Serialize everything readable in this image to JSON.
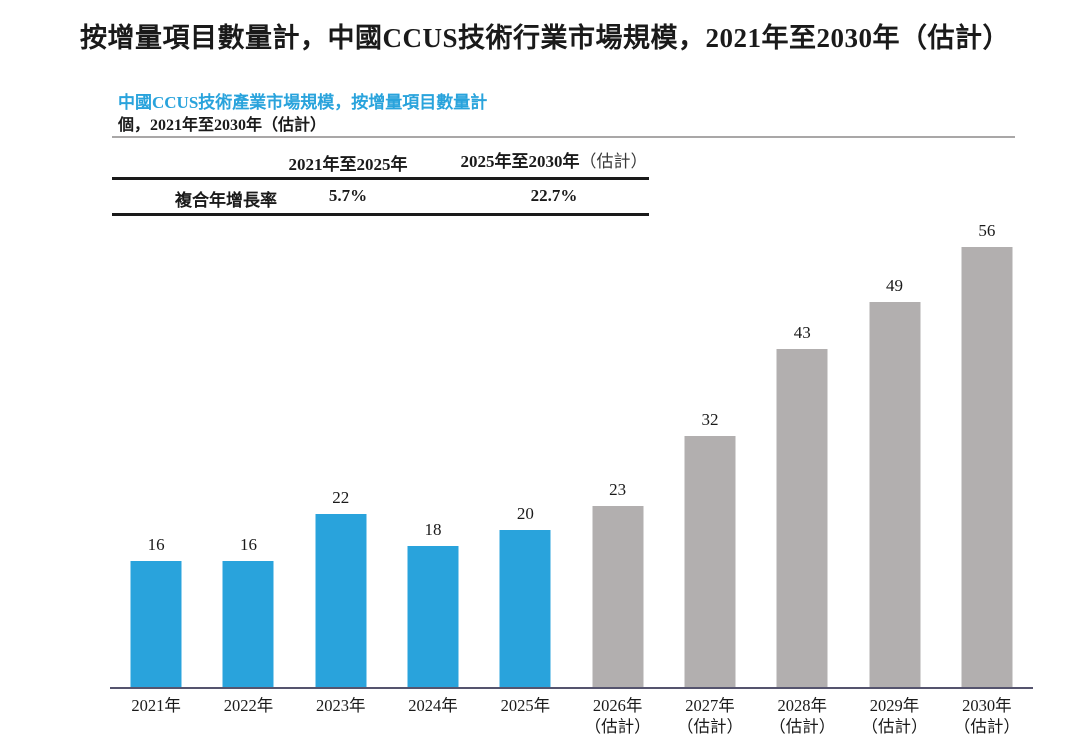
{
  "page": {
    "title": "按增量項目數量計，中國CCUS技術行業市場規模，2021年至2030年（估計）"
  },
  "chart_header": {
    "subtitle": "中國CCUS技術產業市場規模，按增量項目數量計",
    "unit_line": "個，2021年至2030年（估計）"
  },
  "cagr_table": {
    "columns": [
      {
        "label": "2021年至2025年",
        "note": ""
      },
      {
        "label": "2025年至2030年",
        "note": "（估計）"
      }
    ],
    "row_label": "複合年增長率",
    "values": [
      "5.7%",
      "22.7%"
    ]
  },
  "chart_data": {
    "type": "bar",
    "title": "中國CCUS技術產業市場規模，按增量項目數量計",
    "unit": "個",
    "categories": [
      {
        "year": "2021年",
        "note": ""
      },
      {
        "year": "2022年",
        "note": ""
      },
      {
        "year": "2023年",
        "note": ""
      },
      {
        "year": "2024年",
        "note": ""
      },
      {
        "year": "2025年",
        "note": ""
      },
      {
        "year": "2026年",
        "note": "（估計）"
      },
      {
        "year": "2027年",
        "note": "（估計）"
      },
      {
        "year": "2028年",
        "note": "（估計）"
      },
      {
        "year": "2029年",
        "note": "（估計）"
      },
      {
        "year": "2030年",
        "note": "（估計）"
      }
    ],
    "values": [
      16,
      16,
      22,
      18,
      20,
      23,
      32,
      43,
      49,
      56
    ],
    "estimated": [
      false,
      false,
      false,
      false,
      false,
      true,
      true,
      true,
      true,
      true
    ],
    "ylim": [
      0,
      60
    ],
    "grid": false,
    "legend": "none",
    "xlabel": "",
    "ylabel": ""
  },
  "colors": {
    "actual_bar": "#29A3DC",
    "estimated_bar": "#B2AFAF",
    "axis": "#55546E",
    "accent_text": "#29A3DC",
    "rule": "#A9A7A7"
  }
}
